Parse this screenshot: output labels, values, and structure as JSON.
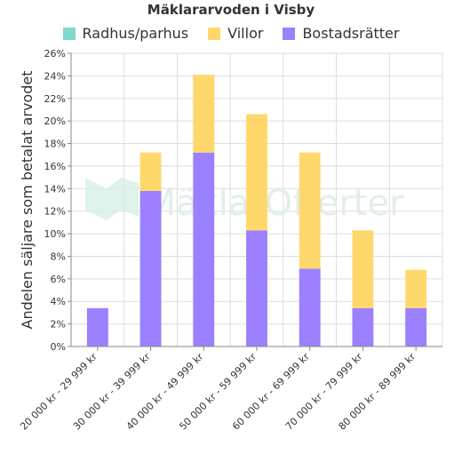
{
  "chart_data": {
    "type": "bar",
    "stacked": true,
    "title": "Mäklararvoden i Visby",
    "xlabel": "",
    "ylabel": "Andelen säljare som betalat arvodet",
    "ylim": [
      0,
      26
    ],
    "y_tick_step": 2,
    "y_tick_suffix": "%",
    "grid": true,
    "legend_position": "top",
    "watermark": "MäklarOfferter",
    "categories": [
      "20 000 kr - 29 999 kr",
      "30 000 kr - 39 999 kr",
      "40 000 kr - 49 999 kr",
      "50 000 kr - 59 999 kr",
      "60 000 kr - 69 999 kr",
      "70 000 kr - 79 999 kr",
      "80 000 kr - 89 999 kr"
    ],
    "series": [
      {
        "name": "Bostadsrätter",
        "color": "#9b80ff",
        "values": [
          3.4,
          13.8,
          17.2,
          10.3,
          6.9,
          3.4,
          3.4
        ]
      },
      {
        "name": "Villor",
        "color": "#ffd86b",
        "values": [
          0,
          3.4,
          6.9,
          10.3,
          10.3,
          6.9,
          3.4
        ]
      },
      {
        "name": "Radhus/parhus",
        "color": "#7fd8cc",
        "values": [
          0,
          0,
          0,
          0,
          0,
          0,
          0
        ]
      }
    ],
    "legend_order": [
      "Radhus/parhus",
      "Villor",
      "Bostadsrätter"
    ]
  }
}
